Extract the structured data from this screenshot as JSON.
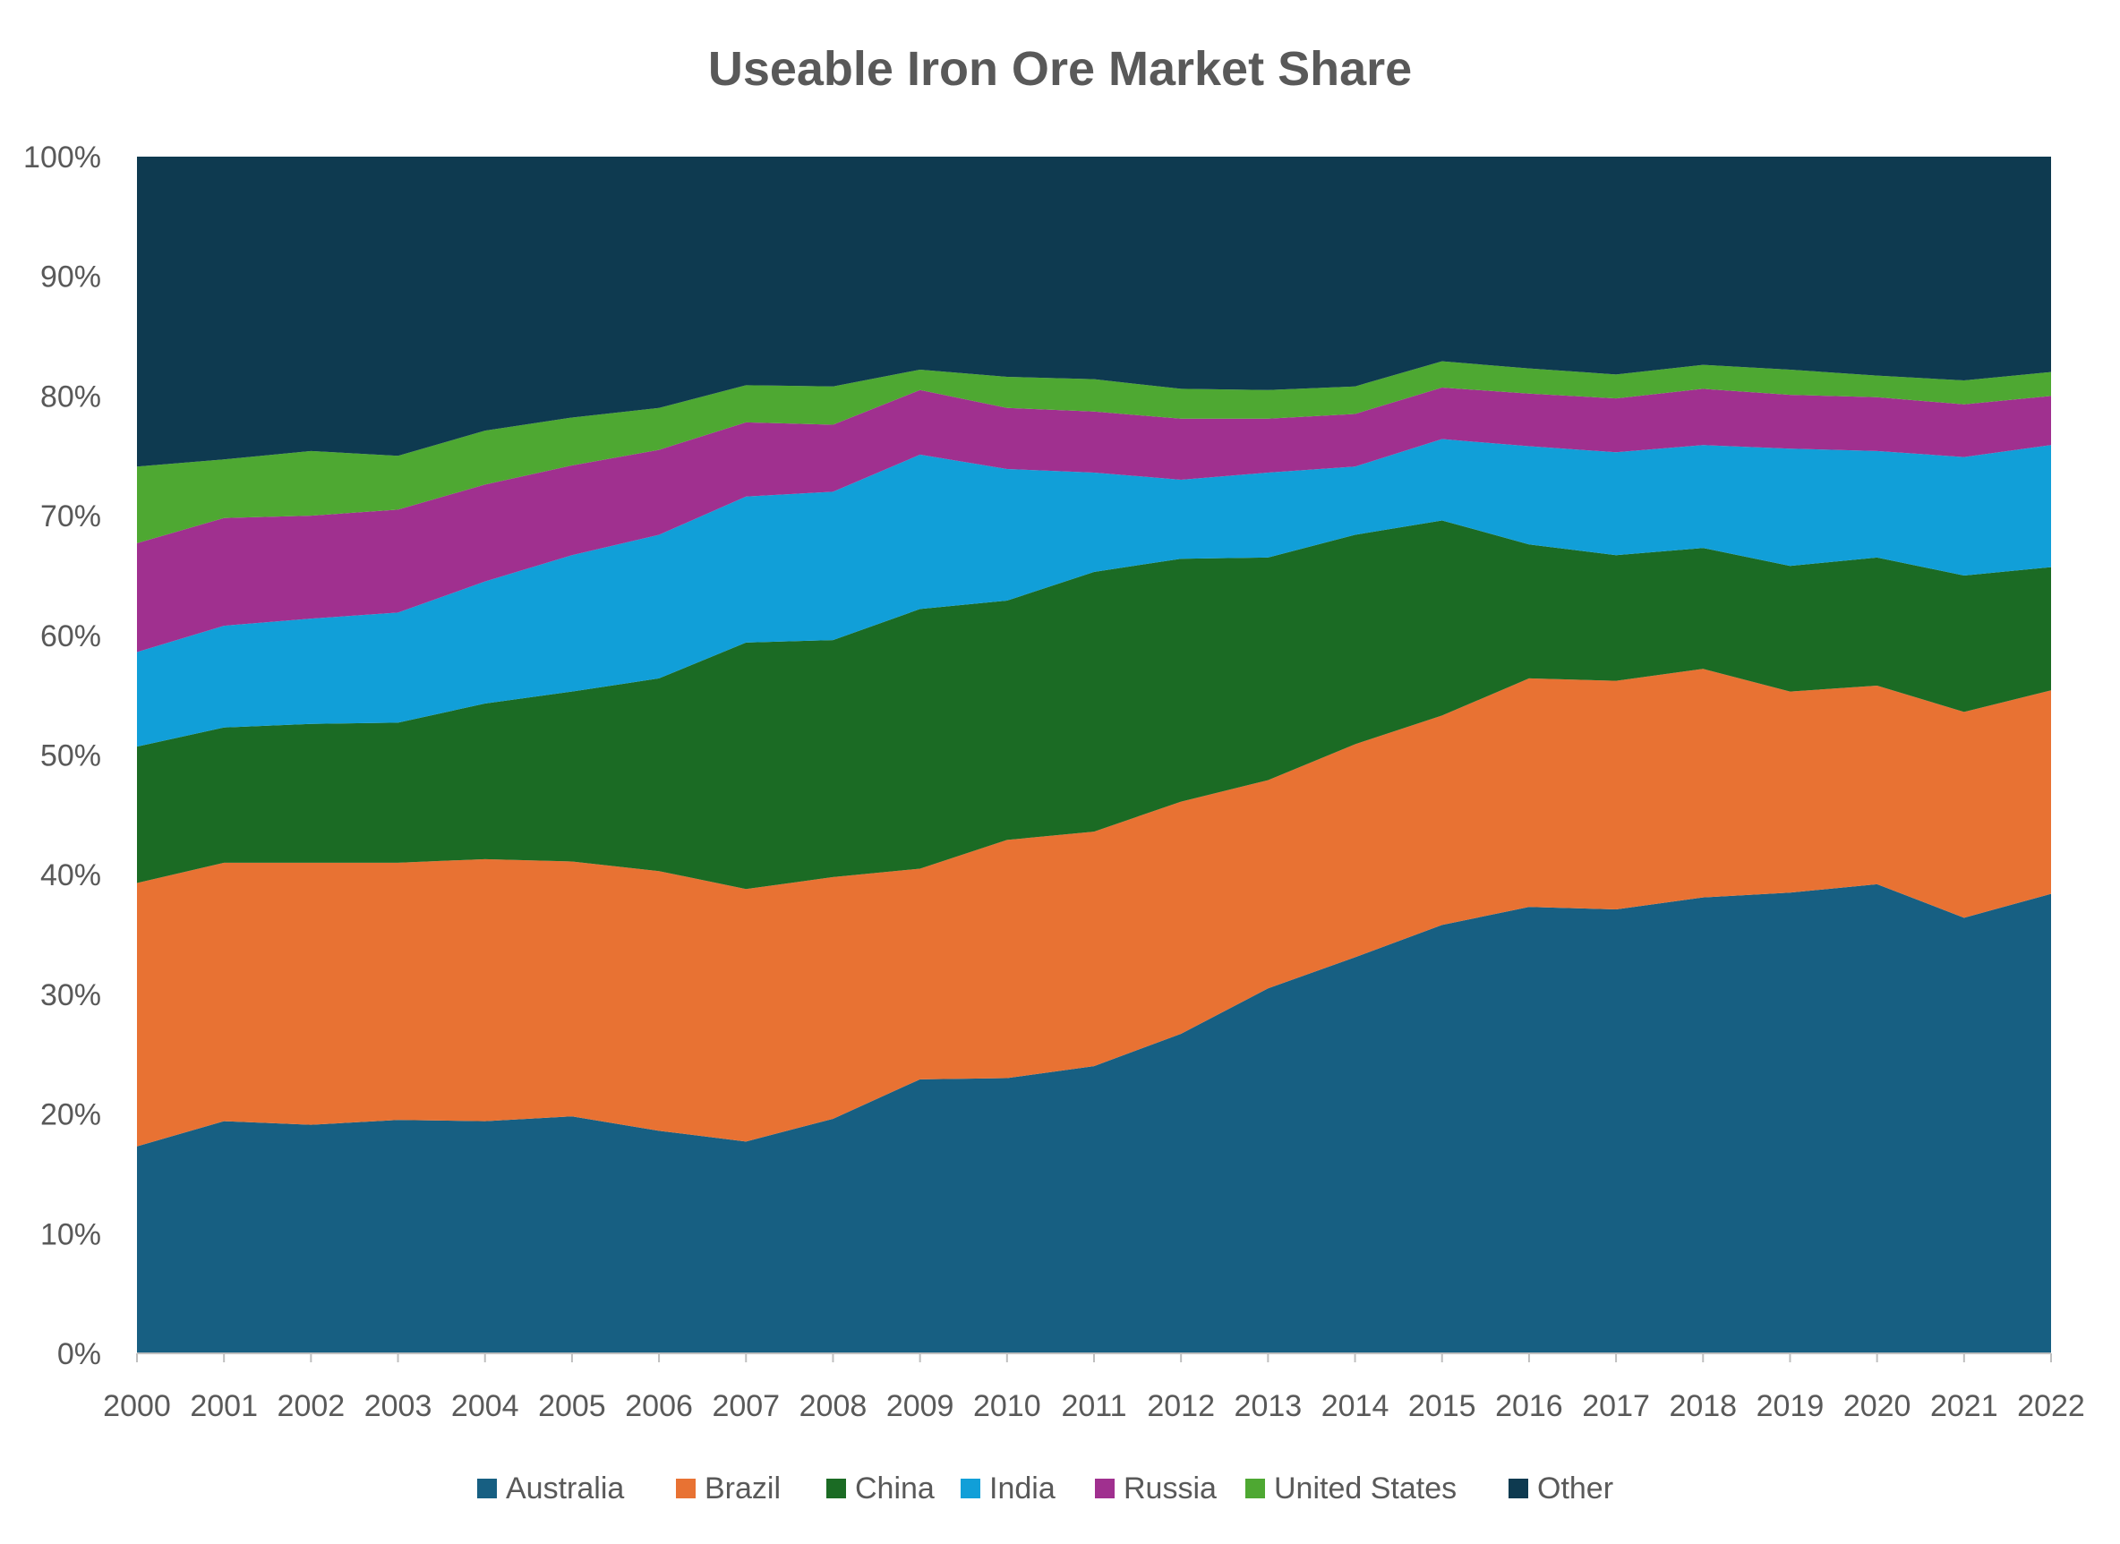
{
  "chart_data": {
    "type": "area",
    "stacked": "percent",
    "title": "Useable Iron Ore Market Share",
    "xlabel": "",
    "ylabel": "",
    "ylim": [
      0,
      100
    ],
    "y_ticks": [
      "0%",
      "10%",
      "20%",
      "30%",
      "40%",
      "50%",
      "60%",
      "70%",
      "80%",
      "90%",
      "100%"
    ],
    "grid": false,
    "legend_position": "bottom",
    "categories": [
      "2000",
      "2001",
      "2002",
      "2003",
      "2004",
      "2005",
      "2006",
      "2007",
      "2008",
      "2009",
      "2010",
      "2011",
      "2012",
      "2013",
      "2014",
      "2015",
      "2016",
      "2017",
      "2018",
      "2019",
      "2020",
      "2021",
      "2022"
    ],
    "series": [
      {
        "name": "Australia",
        "color": "#175f82",
        "values": [
          17.3,
          19.4,
          19.1,
          19.5,
          19.4,
          19.8,
          18.6,
          17.7,
          19.6,
          22.9,
          23.0,
          24.0,
          26.7,
          30.5,
          33.1,
          35.8,
          37.3,
          37.1,
          38.1,
          38.5,
          39.2,
          36.4,
          38.4
        ]
      },
      {
        "name": "Brazil",
        "color": "#e87233",
        "values": [
          22.0,
          21.6,
          21.9,
          21.5,
          21.9,
          21.3,
          21.7,
          21.1,
          20.2,
          17.6,
          19.9,
          19.6,
          19.4,
          17.4,
          17.8,
          17.5,
          19.1,
          19.1,
          19.1,
          16.8,
          16.6,
          17.2,
          17.0
        ]
      },
      {
        "name": "China",
        "color": "#1b6b24",
        "values": [
          11.4,
          11.3,
          11.6,
          11.7,
          13.0,
          14.2,
          16.1,
          20.6,
          19.8,
          21.7,
          20.0,
          21.7,
          20.3,
          18.6,
          17.5,
          16.3,
          11.2,
          10.5,
          10.1,
          10.5,
          10.7,
          11.4,
          10.3
        ]
      },
      {
        "name": "India",
        "color": "#119fd8",
        "values": [
          7.9,
          8.5,
          8.8,
          9.2,
          10.2,
          11.4,
          12.0,
          12.2,
          12.4,
          12.9,
          11.0,
          8.3,
          6.6,
          7.1,
          5.7,
          6.8,
          8.2,
          8.6,
          8.6,
          9.8,
          8.9,
          9.9,
          10.2
        ]
      },
      {
        "name": "Russia",
        "color": "#a0308f",
        "values": [
          9.1,
          9.0,
          8.6,
          8.6,
          8.1,
          7.5,
          7.1,
          6.2,
          5.6,
          5.4,
          5.1,
          5.1,
          5.1,
          4.5,
          4.4,
          4.3,
          4.4,
          4.5,
          4.7,
          4.5,
          4.5,
          4.4,
          4.1
        ]
      },
      {
        "name": "United States",
        "color": "#4ea832",
        "values": [
          6.4,
          4.9,
          5.4,
          4.5,
          4.5,
          4.0,
          3.5,
          3.1,
          3.2,
          1.7,
          2.6,
          2.7,
          2.5,
          2.4,
          2.3,
          2.2,
          2.1,
          2.0,
          2.0,
          2.1,
          1.8,
          2.0,
          2.0
        ]
      },
      {
        "name": "Other",
        "color": "#0e3a50",
        "values": [
          25.9,
          25.3,
          24.6,
          25.0,
          22.9,
          21.8,
          21.0,
          19.1,
          19.2,
          17.8,
          18.4,
          18.6,
          19.4,
          19.5,
          19.2,
          17.1,
          17.7,
          18.2,
          17.4,
          17.8,
          18.3,
          18.7,
          18.0
        ]
      }
    ]
  }
}
